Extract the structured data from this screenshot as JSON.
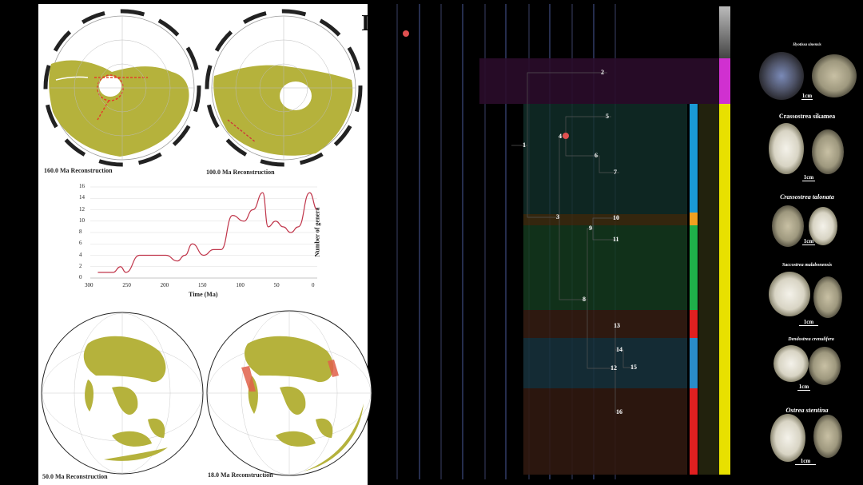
{
  "maps": [
    {
      "caption": "160.0 Ma Reconstruction"
    },
    {
      "caption": "100.0 Ma Reconstruction"
    },
    {
      "caption": "50.0 Ma Reconstruction"
    },
    {
      "caption": "18.0 Ma Reconstruction"
    }
  ],
  "partial_heading": "I",
  "chart_data": {
    "type": "line",
    "xlabel": "Time (Ma)",
    "ylabel": "Number of genera",
    "xlim": [
      300,
      0
    ],
    "ylim": [
      0,
      16
    ],
    "x_ticks": [
      "300",
      "250",
      "200",
      "150",
      "100",
      "50",
      "0"
    ],
    "y_ticks": [
      "0",
      "2",
      "4",
      "6",
      "8",
      "10",
      "12",
      "14",
      "16"
    ],
    "grid": "horizontal",
    "color": "#c0354a",
    "x": [
      290,
      270,
      260,
      253,
      235,
      220,
      200,
      185,
      175,
      165,
      150,
      137,
      127,
      112,
      97,
      85,
      72,
      65,
      55,
      45,
      35,
      25,
      10,
      0
    ],
    "y": [
      1,
      1,
      2,
      1,
      4,
      4,
      4,
      3,
      4,
      6,
      4,
      5,
      5,
      11,
      10,
      12,
      15,
      9,
      10,
      9,
      8,
      9,
      15,
      12
    ]
  },
  "tree": {
    "nodes": [
      "1",
      "2",
      "3",
      "4",
      "5",
      "6",
      "7",
      "8",
      "9",
      "10",
      "11",
      "12",
      "13",
      "14",
      "15",
      "16"
    ],
    "clade_colors": [
      "#1a9ad6",
      "#f0a020",
      "#1fb04a",
      "#e02020",
      "#2a8cc8",
      "#e02020"
    ],
    "group_colors": [
      "#888888",
      "#d030d0",
      "#e8e000"
    ]
  },
  "species": [
    {
      "name": "Hyotissa sinensis",
      "scale": "1cm"
    },
    {
      "name": "Crassostrea sikamea",
      "scale": "1cm"
    },
    {
      "name": "Crassostrea talonata",
      "scale": "1cm"
    },
    {
      "name": "Saccostrea malabonensis",
      "scale": "1cm"
    },
    {
      "name": "Dendostrea crenulifera",
      "scale": "1cm"
    },
    {
      "name": "Ostrea stentina",
      "scale": "1cm"
    }
  ]
}
